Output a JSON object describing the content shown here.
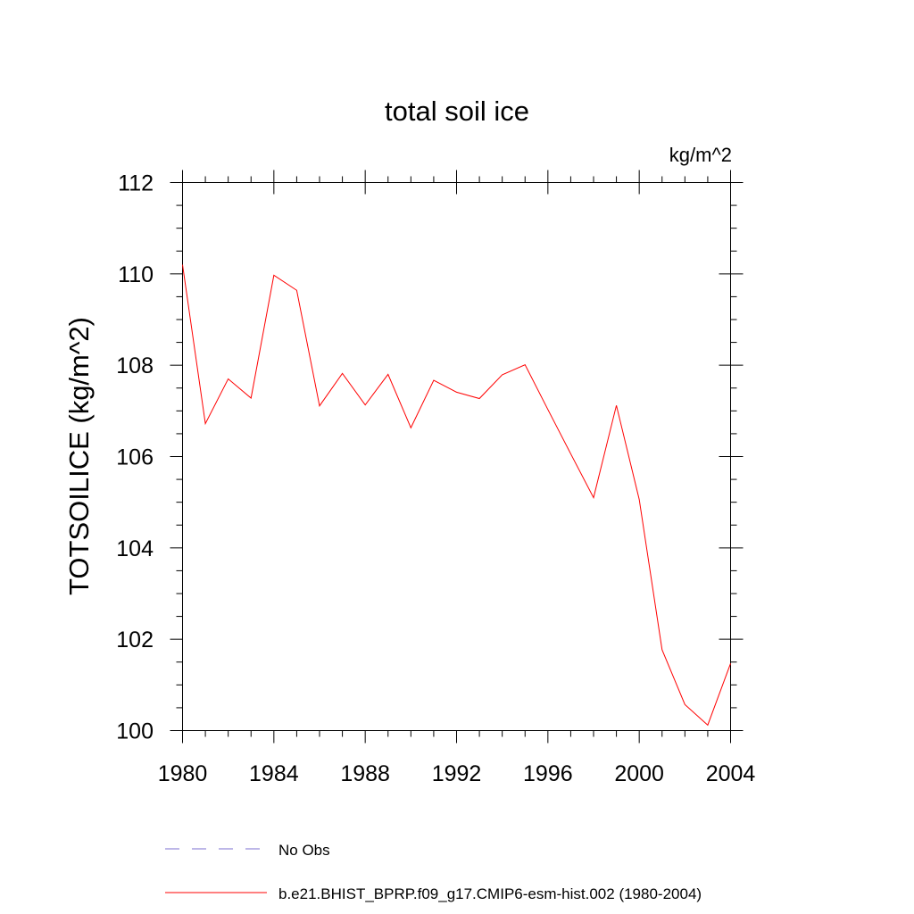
{
  "chart_data": {
    "type": "line",
    "title": "total soil ice",
    "units": "kg/m^2",
    "ylabel": "TOTSOILICE  (kg/m^2)",
    "xlabel": "",
    "xlim": [
      1980,
      2004
    ],
    "ylim": [
      100,
      112
    ],
    "x_ticks": [
      "1980",
      "1984",
      "1988",
      "1992",
      "1996",
      "2000",
      "2004"
    ],
    "y_ticks": [
      "100",
      "102",
      "104",
      "106",
      "108",
      "110",
      "112"
    ],
    "grid": false,
    "legend_position": "bottom",
    "series": [
      {
        "name": "No Obs",
        "color": "#7b6fd1",
        "line_style": "dashed",
        "x": [],
        "values": []
      },
      {
        "name": "b.e21.BHIST_BPRP.f09_g17.CMIP6-esm-hist.002 (1980-2004)",
        "color": "#ff0000",
        "line_style": "solid",
        "x": [
          1980,
          1981,
          1982,
          1983,
          1984,
          1985,
          1986,
          1987,
          1988,
          1989,
          1990,
          1991,
          1992,
          1993,
          1994,
          1995,
          1996,
          1997,
          1998,
          1999,
          2000,
          2001,
          2002,
          2003,
          2004
        ],
        "values": [
          110.2,
          106.72,
          107.7,
          107.28,
          109.97,
          109.64,
          107.11,
          107.82,
          107.13,
          107.8,
          106.63,
          107.67,
          107.41,
          107.27,
          107.79,
          108.01,
          107.03,
          106.06,
          105.1,
          107.12,
          105.06,
          101.77,
          100.57,
          100.12,
          101.47
        ]
      }
    ]
  }
}
